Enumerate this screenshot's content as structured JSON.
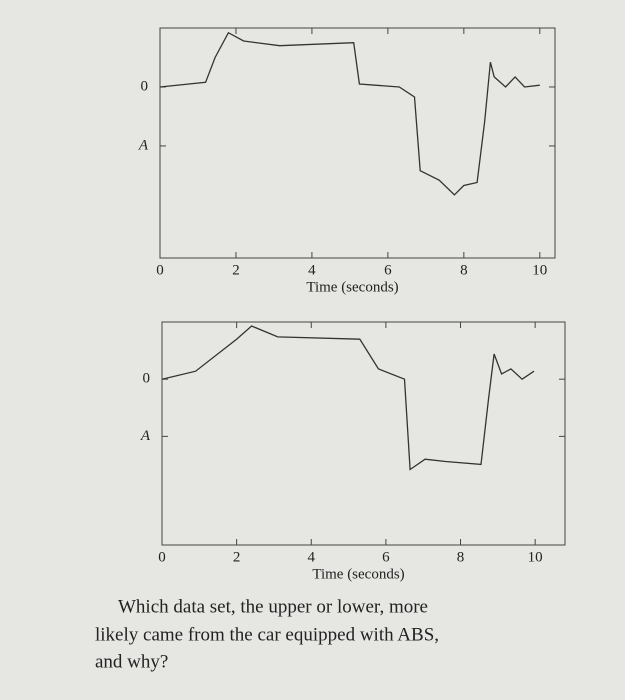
{
  "chart_data": [
    {
      "type": "line",
      "xlabel": "Time (seconds)",
      "xlim": [
        0,
        10.4
      ],
      "ylim": [
        -2.9,
        1
      ],
      "xticks": [
        0,
        2,
        4,
        6,
        8,
        10
      ],
      "yticks": [
        0,
        {
          "value": -1,
          "label": "A"
        }
      ],
      "series": [
        {
          "color": "#333333",
          "x": [
            0,
            1.2,
            1.45,
            1.8,
            2.2,
            3.15,
            5.1,
            5.25,
            6.3,
            6.7,
            6.85,
            7.35,
            7.75,
            8,
            8.35,
            8.55,
            8.7,
            8.8,
            9.1,
            9.35,
            9.6,
            10
          ],
          "values": [
            0,
            0.08,
            0.5,
            0.92,
            0.78,
            0.7,
            0.75,
            0.05,
            0,
            -0.17,
            -1.42,
            -1.58,
            -1.83,
            -1.67,
            -1.62,
            -0.58,
            0.42,
            0.17,
            0,
            0.17,
            0,
            0.03
          ]
        }
      ]
    },
    {
      "type": "line",
      "xlabel": "Time (seconds)",
      "xlim": [
        0,
        10.8
      ],
      "ylim": [
        -2.9,
        1
      ],
      "xticks": [
        0,
        2,
        4,
        6,
        8,
        10
      ],
      "yticks": [
        0,
        {
          "value": -1,
          "label": "A"
        }
      ],
      "series": [
        {
          "color": "#333333",
          "x": [
            0,
            0.9,
            2,
            2.4,
            3.1,
            5.3,
            5.8,
            6.5,
            6.65,
            7.05,
            7.6,
            8.55,
            8.75,
            8.9,
            9.1,
            9.35,
            9.65,
            9.97
          ],
          "values": [
            0,
            0.14,
            0.7,
            0.93,
            0.74,
            0.7,
            0.18,
            0,
            -1.58,
            -1.4,
            -1.44,
            -1.49,
            -0.35,
            0.44,
            0.09,
            0.18,
            0,
            0.14
          ]
        }
      ]
    }
  ],
  "question": [
    "Which data set, the upper or lower, more",
    "likely came from the car equipped with ABS,",
    "and why?"
  ]
}
